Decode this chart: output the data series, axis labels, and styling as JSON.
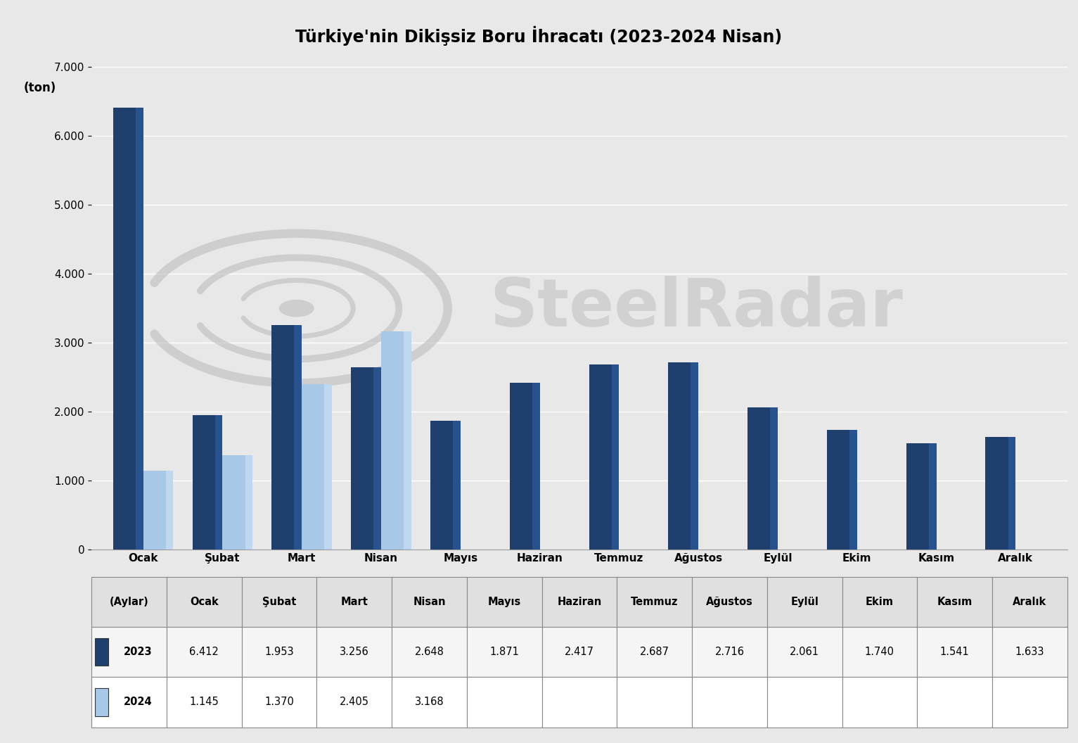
{
  "title": "Türkiye'nin Dikişsiz Boru İhracatı (2023-2024 Nisan)",
  "ylabel": "(ton)",
  "months": [
    "Ocak",
    "Şubat",
    "Mart",
    "Nisan",
    "Mayıs",
    "Haziran",
    "Temmuz",
    "Ağustos",
    "Eylül",
    "Ekim",
    "Kasım",
    "Aralık"
  ],
  "data_2023": [
    6412,
    1953,
    3256,
    2648,
    1871,
    2417,
    2687,
    2716,
    2061,
    1740,
    1541,
    1633
  ],
  "data_2024": [
    1145,
    1370,
    2405,
    3168,
    null,
    null,
    null,
    null,
    null,
    null,
    null,
    null
  ],
  "color_2023_main": "#1F3F6E",
  "color_2023_light": "#2E5FA3",
  "color_2023_top": "#1A3560",
  "color_2024_main": "#A8C8E8",
  "color_2024_light": "#D0E4F4",
  "color_2024_top": "#90B8DC",
  "ylim": [
    0,
    7000
  ],
  "yticks": [
    0,
    1000,
    2000,
    3000,
    4000,
    5000,
    6000,
    7000
  ],
  "background_color": "#E8E8E8",
  "plot_bg_color": "#E8E8E8",
  "table_header": [
    "(Aylar)",
    "Ocak",
    "Şubat",
    "Mart",
    "Nisan",
    "Mayıs",
    "Haziran",
    "Temmuz",
    "Ağustos",
    "Eylül",
    "Ekim",
    "Kasım",
    "Aralık"
  ],
  "watermark_text": "SteelRadar",
  "legend_2023": "2023",
  "legend_2024": "2024",
  "bar_width": 0.38,
  "title_fontsize": 17,
  "axis_fontsize": 12,
  "tick_fontsize": 11,
  "table_fontsize": 10.5
}
